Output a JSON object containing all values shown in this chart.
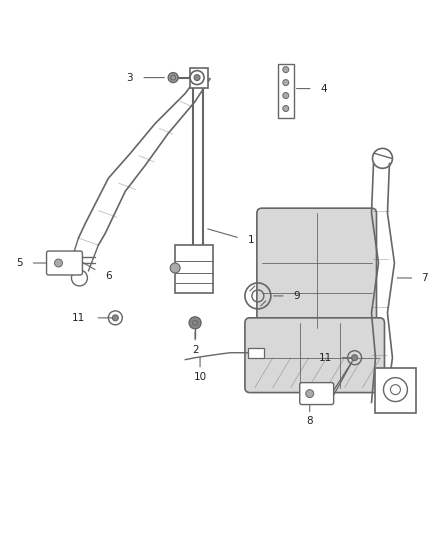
{
  "background_color": "#ffffff",
  "line_color": "#666666",
  "label_color": "#333333",
  "fig_width": 4.38,
  "fig_height": 5.33,
  "dpi": 100
}
